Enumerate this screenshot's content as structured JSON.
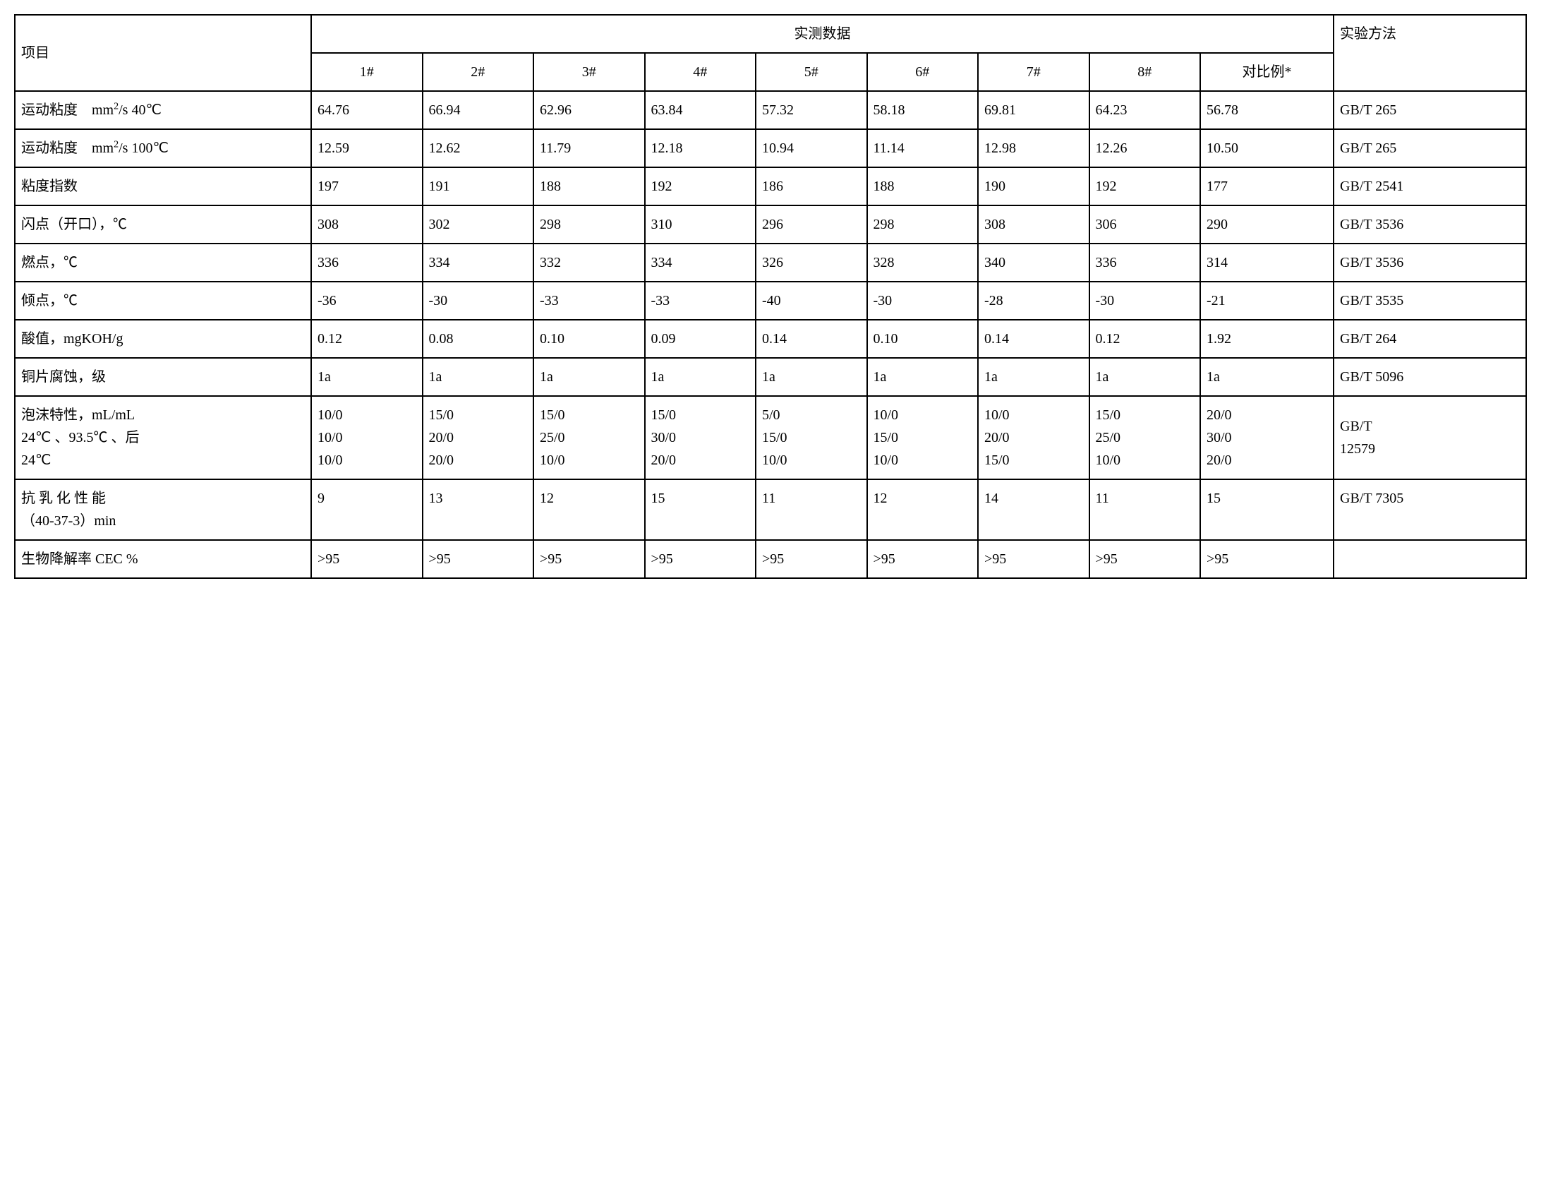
{
  "table": {
    "border_color": "#000000",
    "background_color": "#ffffff",
    "text_color": "#000000",
    "font_size": 20,
    "header": {
      "project": "项目",
      "measured_data": "实测数据",
      "method": "实验方法",
      "cols": [
        "1#",
        "2#",
        "3#",
        "4#",
        "5#",
        "6#",
        "7#",
        "8#",
        "对比例*"
      ]
    },
    "rows": [
      {
        "label_html": "运动粘度　mm<sup>2</sup>/s 40℃",
        "values": [
          "64.76",
          "66.94",
          "62.96",
          "63.84",
          "57.32",
          "58.18",
          "69.81",
          "64.23",
          "56.78"
        ],
        "method": "GB/T 265",
        "value_align": "bottom",
        "method_align": "top"
      },
      {
        "label_html": "运动粘度　mm<sup>2</sup>/s 100℃",
        "values": [
          "12.59",
          "12.62",
          "11.79",
          "12.18",
          "10.94",
          "11.14",
          "12.98",
          "12.26",
          "10.50"
        ],
        "method": "GB/T 265",
        "value_align": "bottom",
        "method_align": "top"
      },
      {
        "label": "粘度指数",
        "values": [
          "197",
          "191",
          "188",
          "192",
          "186",
          "188",
          "190",
          "192",
          "177"
        ],
        "method": "GB/T 2541"
      },
      {
        "label": "闪点（开口），℃",
        "values": [
          "308",
          "302",
          "298",
          "310",
          "296",
          "298",
          "308",
          "306",
          "290"
        ],
        "method": "GB/T 3536"
      },
      {
        "label": "燃点，℃",
        "values": [
          "336",
          "334",
          "332",
          "334",
          "326",
          "328",
          "340",
          "336",
          "314"
        ],
        "method": "GB/T 3536"
      },
      {
        "label": "倾点，℃",
        "values": [
          "-36",
          "-30",
          "-33",
          "-33",
          "-40",
          "-30",
          "-28",
          "-30",
          "-21"
        ],
        "method": "GB/T 3535"
      },
      {
        "label": "酸值，mgKOH/g",
        "values": [
          "0.12",
          "0.08",
          "0.10",
          "0.09",
          "0.14",
          "0.10",
          "0.14",
          "0.12",
          "1.92"
        ],
        "method": "GB/T 264"
      },
      {
        "label": "铜片腐蚀，级",
        "values": [
          "1a",
          "1a",
          "1a",
          "1a",
          "1a",
          "1a",
          "1a",
          "1a",
          "1a"
        ],
        "method": "GB/T 5096"
      },
      {
        "label": "泡沫特性，mL/mL\n24℃ 、93.5℃ 、后\n24℃",
        "values": [
          "10/0\n10/0\n10/0",
          "15/0\n20/0\n20/0",
          "15/0\n25/0\n10/0",
          "15/0\n30/0\n20/0",
          "5/0\n15/0\n10/0",
          "10/0\n15/0\n10/0",
          "10/0\n20/0\n15/0",
          "15/0\n25/0\n10/0",
          "20/0\n30/0\n20/0"
        ],
        "method": "GB/T\n12579",
        "multiline": true
      },
      {
        "label": "抗 乳 化 性 能\n（40-37-3）min",
        "values": [
          "9",
          "13",
          "12",
          "15",
          "11",
          "12",
          "14",
          "11",
          "15"
        ],
        "method": "GB/T 7305",
        "multiline_label": true,
        "value_align": "top",
        "method_align": "top"
      },
      {
        "label": "生物降解率 CEC %",
        "values": [
          ">95",
          ">95",
          ">95",
          ">95",
          ">95",
          ">95",
          ">95",
          ">95",
          ">95"
        ],
        "method": ""
      }
    ]
  }
}
